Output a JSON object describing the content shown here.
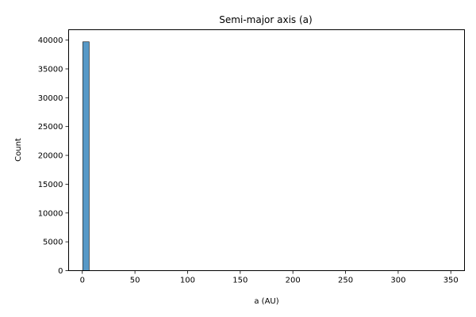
{
  "chart_data": {
    "type": "bar",
    "title": "Semi-major axis (a)",
    "xlabel": "a (AU)",
    "ylabel": "Count",
    "xlim": [
      -13,
      363
    ],
    "ylim": [
      0,
      41800
    ],
    "x_ticks": [
      0,
      50,
      100,
      150,
      200,
      250,
      300,
      350
    ],
    "y_ticks": [
      0,
      5000,
      10000,
      15000,
      20000,
      25000,
      30000,
      35000,
      40000
    ],
    "grid": false,
    "bar_color": "#1f77b4",
    "bars": [
      {
        "x0": 0.5,
        "x1": 6.5,
        "count": 39700
      }
    ]
  }
}
